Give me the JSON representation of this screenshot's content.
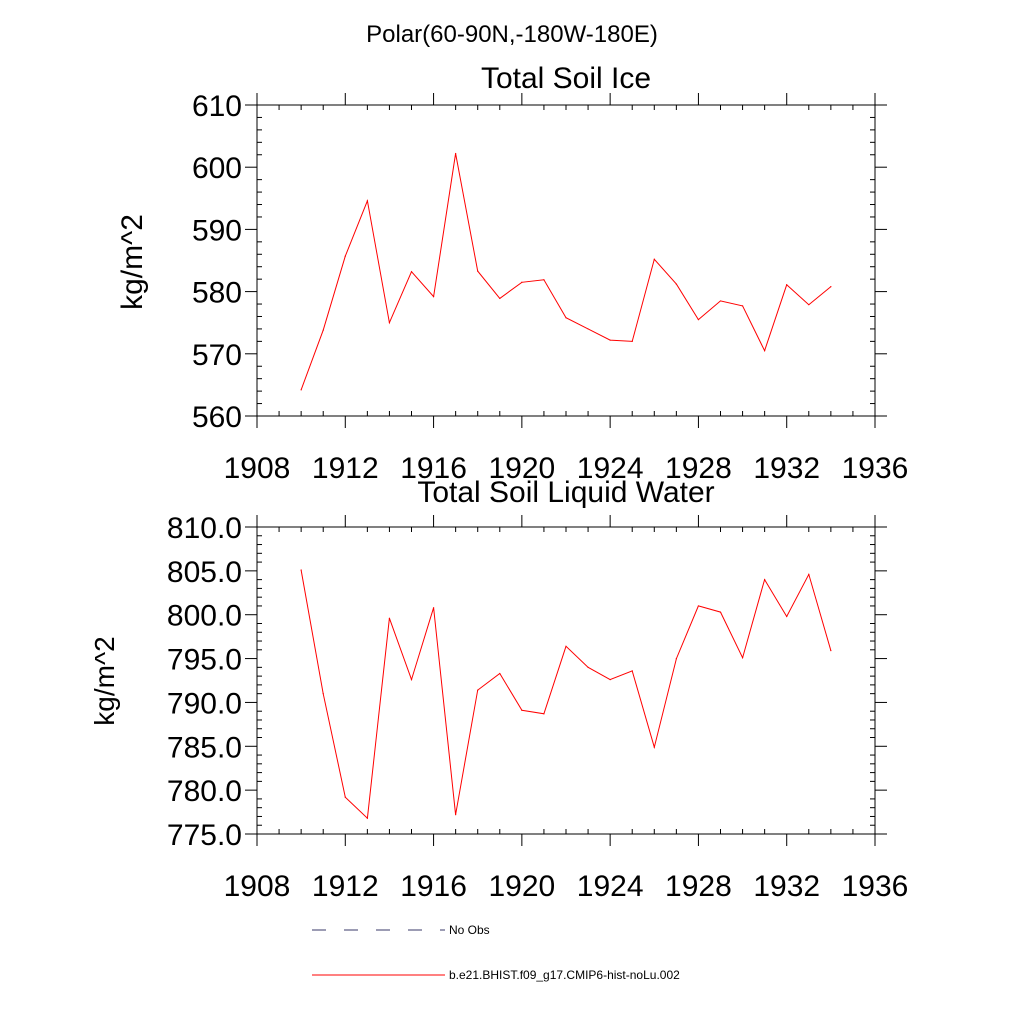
{
  "figure": {
    "title": "Polar(60-90N,-180W-180E)"
  },
  "chart_data": [
    {
      "type": "line",
      "title": "Total Soil Ice",
      "xlabel": "",
      "ylabel": "kg/m^2",
      "xlim": [
        1908,
        1936
      ],
      "ylim": [
        560,
        610
      ],
      "xticks": [
        1908,
        1912,
        1916,
        1920,
        1924,
        1928,
        1932,
        1936
      ],
      "yticks": [
        560,
        570,
        580,
        590,
        600,
        610
      ],
      "ytick_labels": [
        "560",
        "570",
        "580",
        "590",
        "600",
        "610"
      ],
      "grid": false,
      "series": [
        {
          "name": "b.e21.BHIST.f09_g17.CMIP6-hist-noLu.002",
          "color": "#ff0000",
          "x": [
            1910,
            1911,
            1912,
            1913,
            1914,
            1915,
            1916,
            1917,
            1918,
            1919,
            1920,
            1921,
            1922,
            1923,
            1924,
            1925,
            1926,
            1927,
            1928,
            1929,
            1930,
            1931,
            1932,
            1933,
            1934
          ],
          "values": [
            564.2,
            573.8,
            585.7,
            594.6,
            575.0,
            583.2,
            579.2,
            602.2,
            583.3,
            578.9,
            581.5,
            581.9,
            575.8,
            574.0,
            572.2,
            572.0,
            585.2,
            581.2,
            575.5,
            578.5,
            577.7,
            570.5,
            581.1,
            577.9,
            580.8
          ]
        }
      ]
    },
    {
      "type": "line",
      "title": "Total Soil Liquid Water",
      "xlabel": "",
      "ylabel": "kg/m^2",
      "xlim": [
        1908,
        1936
      ],
      "ylim": [
        775,
        810
      ],
      "xticks": [
        1908,
        1912,
        1916,
        1920,
        1924,
        1928,
        1932,
        1936
      ],
      "yticks": [
        775,
        780,
        785,
        790,
        795,
        800,
        805,
        810
      ],
      "ytick_labels": [
        "775.0",
        "780.0",
        "785.0",
        "790.0",
        "795.0",
        "800.0",
        "805.0",
        "810.0"
      ],
      "grid": false,
      "series": [
        {
          "name": "b.e21.BHIST.f09_g17.CMIP6-hist-noLu.002",
          "color": "#ff0000",
          "x": [
            1910,
            1911,
            1912,
            1913,
            1914,
            1915,
            1916,
            1917,
            1918,
            1919,
            1920,
            1921,
            1922,
            1923,
            1924,
            1925,
            1926,
            1927,
            1928,
            1929,
            1930,
            1931,
            1932,
            1933,
            1934
          ],
          "values": [
            805.1,
            791.0,
            779.2,
            776.8,
            799.6,
            792.6,
            800.8,
            777.2,
            791.4,
            793.3,
            789.1,
            788.7,
            796.4,
            794.0,
            792.6,
            793.6,
            784.9,
            795.0,
            801.0,
            800.3,
            795.1,
            804.0,
            799.8,
            804.6,
            795.9
          ]
        }
      ]
    }
  ],
  "legend": {
    "placement": "bottom",
    "entries": [
      {
        "label": "No Obs",
        "style": "dashed",
        "color": "#3a3a6a"
      },
      {
        "label": "b.e21.BHIST.f09_g17.CMIP6-hist-noLu.002",
        "style": "solid",
        "color": "#ff0000"
      }
    ]
  }
}
